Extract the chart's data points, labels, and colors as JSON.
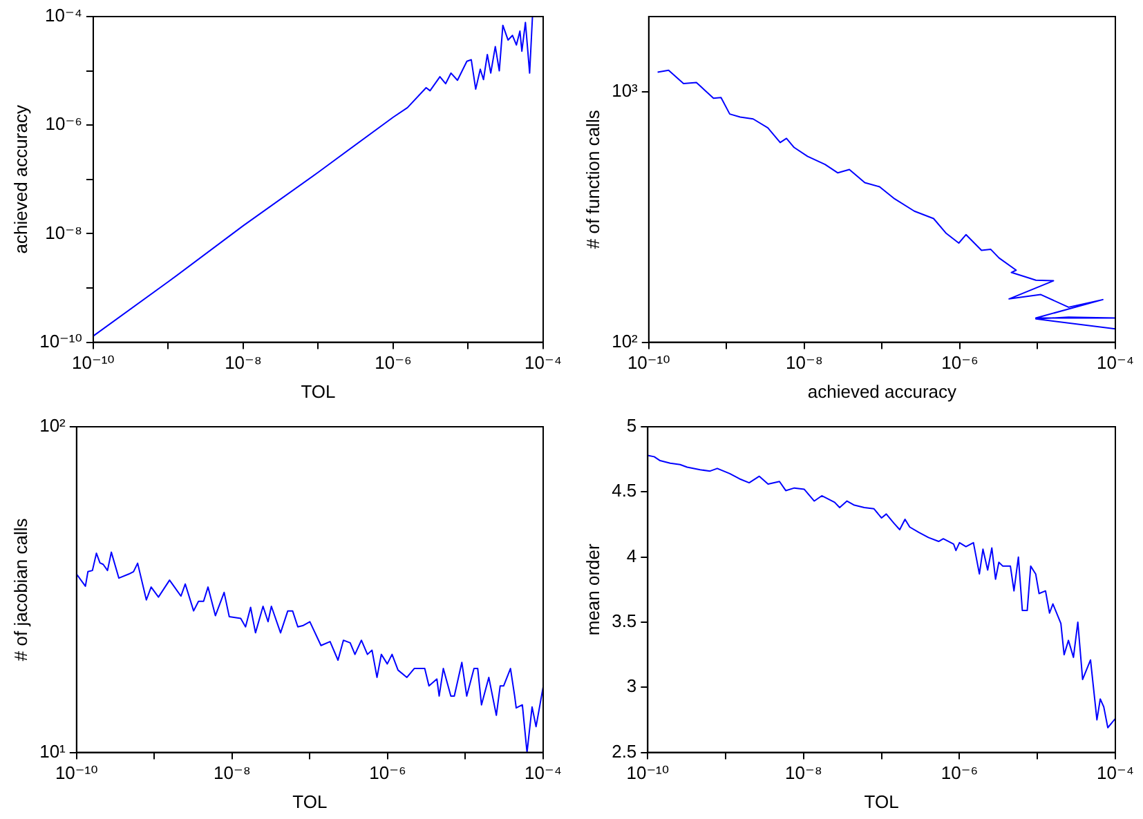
{
  "chart_data": [
    {
      "type": "line",
      "xlabel": "TOL",
      "ylabel": "achieved accuracy",
      "log": "xy",
      "xlim": [
        1e-10,
        0.0001
      ],
      "ylim": [
        1e-10,
        0.0001
      ],
      "xticks": [
        {
          "value": 1e-10,
          "label": "10⁻¹⁰"
        },
        {
          "value": 1e-09,
          "label": null
        },
        {
          "value": 1e-08,
          "label": "10⁻⁸"
        },
        {
          "value": 1e-07,
          "label": null
        },
        {
          "value": 1e-06,
          "label": "10⁻⁶"
        },
        {
          "value": 1e-05,
          "label": null
        },
        {
          "value": 0.0001,
          "label": "10⁻⁴"
        }
      ],
      "yticks": [
        {
          "value": 1e-10,
          "label": "10⁻¹⁰"
        },
        {
          "value": 1e-09,
          "label": null
        },
        {
          "value": 1e-08,
          "label": "10⁻⁸"
        },
        {
          "value": 1e-07,
          "label": null
        },
        {
          "value": 1e-06,
          "label": "10⁻⁶"
        },
        {
          "value": 1e-05,
          "label": null
        },
        {
          "value": 0.0001,
          "label": "10⁻⁴"
        }
      ],
      "x": [
        1e-10,
        1e-09,
        1e-08,
        1e-07,
        1e-06,
        1.55e-06,
        2.75e-06,
        3.1e-06,
        4.2e-06,
        5e-06,
        5.9e-06,
        7.2e-06,
        9.6e-06,
        1.1e-05,
        1.26e-05,
        1.45e-05,
        1.6e-05,
        1.8e-05,
        2e-05,
        2.3e-05,
        2.6e-05,
        2.9e-05,
        3.4e-05,
        3.9e-05,
        4.4e-05,
        4.9e-05,
        5.2e-05,
        5.8e-05,
        6.6e-05,
        7.2e-05
      ],
      "series": [
        {
          "color": "#0000ff",
          "values": [
            1.3e-10,
            1.3e-09,
            1.4e-08,
            1.35e-07,
            1.4e-06,
            2.1e-06,
            4.9e-06,
            4.3e-06,
            7.8e-06,
            5.8e-06,
            9.1e-06,
            6.7e-06,
            1.5e-05,
            1.6e-05,
            4.6e-06,
            1.07e-05,
            6.9e-06,
            2e-05,
            9.1e-06,
            2.8e-05,
            1e-05,
            6.9e-05,
            3.7e-05,
            4.5e-05,
            3e-05,
            5.4e-05,
            2.3e-05,
            7.8e-05,
            9.1e-06,
            0.0001
          ]
        }
      ]
    },
    {
      "type": "line",
      "xlabel": "achieved accuracy",
      "ylabel": "# of function calls",
      "log": "xy",
      "xlim": [
        1e-10,
        0.0001
      ],
      "ylim": [
        100,
        2000
      ],
      "xticks": [
        {
          "value": 1e-10,
          "label": "10⁻¹⁰"
        },
        {
          "value": 1e-09,
          "label": null
        },
        {
          "value": 1e-08,
          "label": "10⁻⁸"
        },
        {
          "value": 1e-07,
          "label": null
        },
        {
          "value": 1e-06,
          "label": "10⁻⁶"
        },
        {
          "value": 1e-05,
          "label": null
        },
        {
          "value": 0.0001,
          "label": "10⁻⁴"
        }
      ],
      "yticks": [
        {
          "value": 100,
          "label": "10²"
        },
        {
          "value": 1000,
          "label": "10³"
        }
      ],
      "x": [
        1.3e-10,
        1.8e-10,
        2.8e-10,
        4.1e-10,
        6.8e-10,
        8.5e-10,
        1.1e-09,
        1.5e-09,
        2.2e-09,
        3.4e-09,
        4.9e-09,
        5.9e-09,
        7.4e-09,
        1.1e-08,
        1.85e-08,
        2.7e-08,
        3.8e-08,
        6e-08,
        9.3e-08,
        1.45e-07,
        2.6e-07,
        4.6e-07,
        6.7e-07,
        9.7e-07,
        1.2e-06,
        1.9e-06,
        2.5e-06,
        3.2e-06,
        5.3e-06,
        4.6e-06,
        7.6e-06,
        9.5e-06,
        1.6e-05,
        4.3e-06,
        1.1e-05,
        2.5e-05,
        6.9e-05,
        9.5e-06,
        0.0001,
        2.5e-05,
        9.5e-06,
        0.0001
      ],
      "series": [
        {
          "color": "#0000ff",
          "values": [
            1200,
            1220,
            1080,
            1090,
            944,
            950,
            816,
            794,
            780,
            719,
            628,
            652,
            600,
            553,
            513,
            475,
            490,
            434,
            418,
            374,
            334,
            312,
            272,
            249,
            269,
            233,
            235,
            217,
            194,
            190,
            181,
            177,
            176,
            149,
            155,
            138,
            148,
            125,
            125,
            126,
            124,
            113
          ]
        }
      ]
    },
    {
      "type": "line",
      "xlabel": "TOL",
      "ylabel": "# of jacobian calls",
      "log": "xy",
      "xlim": [
        1e-10,
        0.0001
      ],
      "ylim": [
        10,
        100
      ],
      "xticks": [
        {
          "value": 1e-10,
          "label": "10⁻¹⁰"
        },
        {
          "value": 1e-09,
          "label": null
        },
        {
          "value": 1e-08,
          "label": "10⁻⁸"
        },
        {
          "value": 1e-07,
          "label": null
        },
        {
          "value": 1e-06,
          "label": "10⁻⁶"
        },
        {
          "value": 1e-05,
          "label": null
        },
        {
          "value": 0.0001,
          "label": "10⁻⁴"
        }
      ],
      "yticks": [
        {
          "value": 10,
          "label": "10¹"
        },
        {
          "value": 100,
          "label": "10²"
        }
      ],
      "x": [
        1e-10,
        1.3e-10,
        1.4e-10,
        1.6e-10,
        1.8e-10,
        2e-10,
        2.2e-10,
        2.5e-10,
        2.8e-10,
        3.5e-10,
        4.7e-10,
        5.4e-10,
        6.1e-10,
        7.9e-10,
        9.1e-10,
        1.13e-09,
        1.57e-09,
        2.2e-09,
        2.5e-09,
        3.2e-09,
        3.7e-09,
        4.3e-09,
        4.9e-09,
        6.1e-09,
        7.9e-09,
        9.2e-09,
        1.29e-08,
        1.49e-08,
        1.73e-08,
        2e-08,
        2.5e-08,
        2.9e-08,
        3.2e-08,
        4.2e-08,
        5.2e-08,
        6e-08,
        7e-08,
        8.1e-08,
        1e-07,
        1.39e-07,
        1.82e-07,
        2.3e-07,
        2.7e-07,
        3.3e-07,
        3.8e-07,
        4.6e-07,
        5.5e-07,
        6.3e-07,
        7.3e-07,
        8.3e-07,
        9.9e-07,
        1.14e-06,
        1.36e-06,
        1.77e-06,
        2.2e-06,
        3e-06,
        3.4e-06,
        4.3e-06,
        4.6e-06,
        5.2e-06,
        6.5e-06,
        7.2e-06,
        9e-06,
        1.04e-05,
        1.29e-05,
        1.44e-05,
        1.61e-05,
        2e-05,
        2.5e-05,
        2.8e-05,
        3.1e-05,
        3.8e-05,
        4.3e-05,
        4.5e-05,
        5.4e-05,
        6.2e-05,
        7.2e-05,
        8.1e-05,
        0.0001
      ],
      "series": [
        {
          "color": "#0000ff",
          "values": [
            35.3,
            32.4,
            35.9,
            36.2,
            40.9,
            38.2,
            37.8,
            36.2,
            41.2,
            34.3,
            35.3,
            35.9,
            38.1,
            29.4,
            32.2,
            30.0,
            33.8,
            30.2,
            32.9,
            27.2,
            29.1,
            29.1,
            32.2,
            26.3,
            31.0,
            26.1,
            25.8,
            24.3,
            27.9,
            23.3,
            28.1,
            25.2,
            28.1,
            23.3,
            27.2,
            27.2,
            24.3,
            24.5,
            25.2,
            21.3,
            21.9,
            19.2,
            22.1,
            21.7,
            20.0,
            22.1,
            20.0,
            20.6,
            17.0,
            20.0,
            18.7,
            20.0,
            17.9,
            17.0,
            18.1,
            18.1,
            16.0,
            16.8,
            14.9,
            18.1,
            14.9,
            14.9,
            18.9,
            14.9,
            18.1,
            18.1,
            14.0,
            17.0,
            13.0,
            16.0,
            16.0,
            18.1,
            14.9,
            13.7,
            14.0,
            10.0,
            13.8,
            12.0,
            15.9
          ]
        }
      ]
    },
    {
      "type": "line",
      "xlabel": "TOL",
      "ylabel": "mean order",
      "log": "x",
      "xlim": [
        1e-10,
        0.0001
      ],
      "ylim": [
        2.5,
        5
      ],
      "xticks": [
        {
          "value": 1e-10,
          "label": "10⁻¹⁰"
        },
        {
          "value": 1e-09,
          "label": null
        },
        {
          "value": 1e-08,
          "label": "10⁻⁸"
        },
        {
          "value": 1e-07,
          "label": null
        },
        {
          "value": 1e-06,
          "label": "10⁻⁶"
        },
        {
          "value": 1e-05,
          "label": null
        },
        {
          "value": 0.0001,
          "label": "10⁻⁴"
        }
      ],
      "yticks": [
        2.5,
        3,
        3.5,
        4,
        4.5,
        5
      ],
      "x": [
        1e-10,
        1.21e-10,
        1.44e-10,
        1.94e-10,
        2.6e-10,
        3.2e-10,
        4.7e-10,
        6.3e-10,
        7.8e-10,
        1.13e-09,
        1.51e-09,
        2e-09,
        2.7e-09,
        3.5e-09,
        4.9e-09,
        5.9e-09,
        7.6e-09,
        1.02e-08,
        1.37e-08,
        1.71e-08,
        2.5e-08,
        2.9e-08,
        3.6e-08,
        4.4e-08,
        6e-08,
        8e-08,
        1e-07,
        1.15e-07,
        1.44e-07,
        1.71e-07,
        2e-07,
        2.3e-07,
        3e-07,
        4e-07,
        5.4e-07,
        6.2e-07,
        8.4e-07,
        9e-07,
        1e-06,
        1.21e-06,
        1.51e-06,
        1.8e-06,
        2e-06,
        2.3e-06,
        2.6e-06,
        2.9e-06,
        3.2e-06,
        3.6e-06,
        4.5e-06,
        5e-06,
        5.7e-06,
        6.4e-06,
        7.4e-06,
        8.2e-06,
        9.5e-06,
        1.05e-05,
        1.27e-05,
        1.43e-05,
        1.58e-05,
        2e-05,
        2.2e-05,
        2.5e-05,
        2.9e-05,
        3.3e-05,
        3.8e-05,
        4.8e-05,
        5.8e-05,
        6.4e-05,
        7.1e-05,
        8e-05,
        0.0001
      ],
      "series": [
        {
          "color": "#0000ff",
          "values": [
            4.78,
            4.77,
            4.74,
            4.72,
            4.71,
            4.69,
            4.67,
            4.66,
            4.68,
            4.64,
            4.6,
            4.57,
            4.62,
            4.56,
            4.58,
            4.51,
            4.53,
            4.52,
            4.43,
            4.47,
            4.42,
            4.38,
            4.43,
            4.4,
            4.38,
            4.37,
            4.3,
            4.33,
            4.26,
            4.21,
            4.29,
            4.23,
            4.19,
            4.15,
            4.12,
            4.14,
            4.1,
            4.05,
            4.11,
            4.08,
            4.11,
            3.87,
            4.06,
            3.9,
            4.07,
            3.83,
            3.96,
            3.93,
            3.93,
            3.74,
            4.0,
            3.59,
            3.59,
            3.93,
            3.87,
            3.72,
            3.74,
            3.57,
            3.64,
            3.49,
            3.25,
            3.36,
            3.23,
            3.5,
            3.06,
            3.21,
            2.75,
            2.91,
            2.85,
            2.69,
            2.76
          ]
        }
      ]
    }
  ]
}
